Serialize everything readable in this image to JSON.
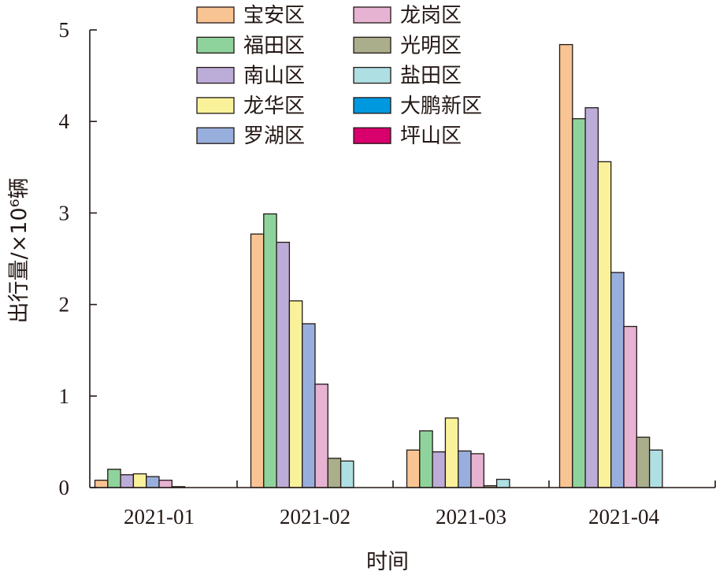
{
  "chart_data": {
    "type": "bar",
    "categories": [
      "2021-01",
      "2021-02",
      "2021-03",
      "2021-04"
    ],
    "series": [
      {
        "name": "宝安区",
        "color": "#F8C493",
        "values": [
          0.08,
          2.77,
          0.41,
          4.84
        ]
      },
      {
        "name": "福田区",
        "color": "#8FD39C",
        "values": [
          0.2,
          2.99,
          0.62,
          4.03
        ]
      },
      {
        "name": "南山区",
        "color": "#BCACD8",
        "values": [
          0.14,
          2.68,
          0.39,
          4.15
        ]
      },
      {
        "name": "龙华区",
        "color": "#F9F29B",
        "values": [
          0.15,
          2.04,
          0.76,
          3.56
        ]
      },
      {
        "name": "罗湖区",
        "color": "#98AFDD",
        "values": [
          0.12,
          1.79,
          0.4,
          2.35
        ]
      },
      {
        "name": "龙岗区",
        "color": "#E6B3D2",
        "values": [
          0.08,
          1.13,
          0.37,
          1.76
        ]
      },
      {
        "name": "光明区",
        "color": "#AAAE8B",
        "values": [
          0.01,
          0.32,
          0.02,
          0.55
        ]
      },
      {
        "name": "盐田区",
        "color": "#ADDFE3",
        "values": [
          0.0,
          0.29,
          0.09,
          0.41
        ]
      },
      {
        "name": "大鹏新区",
        "color": "#0099E0",
        "values": [
          0.0,
          0.0,
          0.0,
          0.0
        ]
      },
      {
        "name": "坪山区",
        "color": "#D7006C",
        "values": [
          0.0,
          0.0,
          0.0,
          0.0
        ]
      }
    ],
    "xlabel": "时间",
    "ylabel": "出行量/×10⁶辆",
    "ylim": [
      0,
      5
    ],
    "yticks": [
      "0",
      "1",
      "2",
      "3",
      "4",
      "5"
    ],
    "grid": false,
    "legend_position": "top-left"
  }
}
